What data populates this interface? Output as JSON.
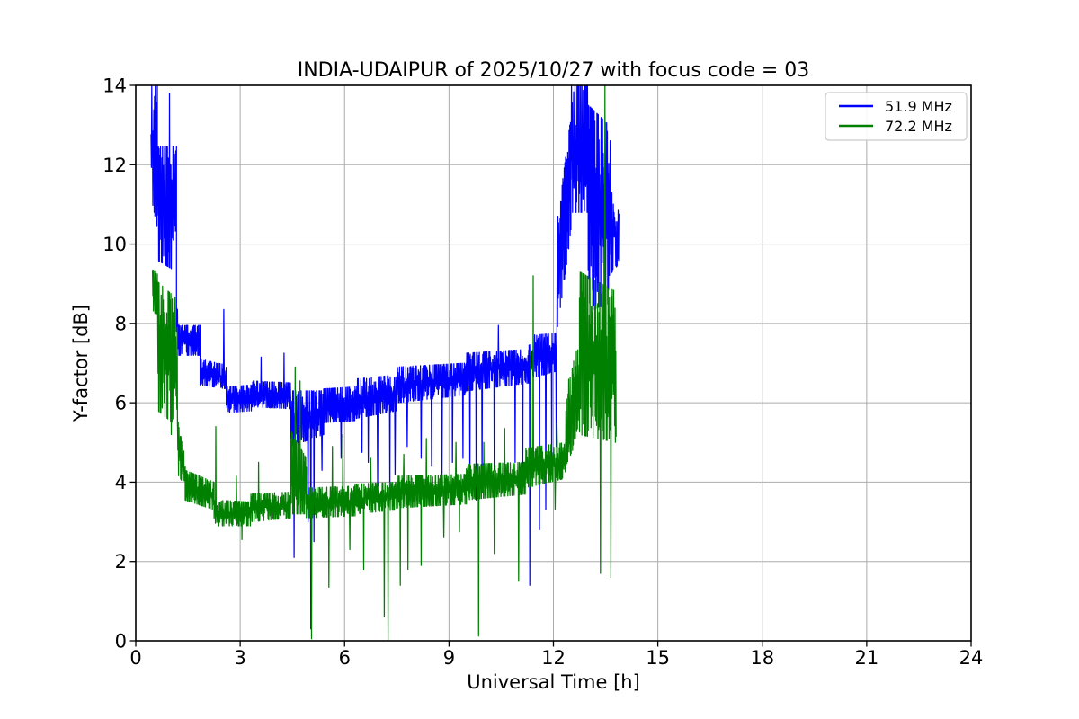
{
  "chart_data": {
    "type": "line",
    "title": "INDIA-UDAIPUR of 2025/10/27 with focus code = 03",
    "xlabel": "Universal Time [h]",
    "ylabel": "Y-factor [dB]",
    "xlim": [
      0,
      24
    ],
    "ylim": [
      0,
      14
    ],
    "xticks": [
      0,
      3,
      6,
      9,
      12,
      15,
      18,
      21,
      24
    ],
    "yticks": [
      0,
      2,
      4,
      6,
      8,
      10,
      12,
      14
    ],
    "grid": true,
    "grid_color": "#ababab",
    "legend_position": "upper right",
    "background": "#ffffff",
    "series": [
      {
        "name": "51.9 MHz",
        "color": "#0000ff",
        "data_time_range_h": [
          0.44,
          13.88
        ],
        "band_segments": [
          [
            0.44,
            0.62,
            11.2,
            14.0,
            10.4,
            14.0
          ],
          [
            0.62,
            1.17,
            9.6,
            12.45,
            9.3,
            12.45
          ],
          [
            1.17,
            1.23,
            7.5,
            9.4,
            7.3,
            8.2
          ],
          [
            1.23,
            1.85,
            7.2,
            7.95,
            7.2,
            7.95
          ],
          [
            1.85,
            2.6,
            6.45,
            7.1,
            6.35,
            6.95
          ],
          [
            2.6,
            3.35,
            5.75,
            6.4,
            5.8,
            6.45
          ],
          [
            3.35,
            4.45,
            5.9,
            6.55,
            5.85,
            6.5
          ],
          [
            4.45,
            5.4,
            4.9,
            6.3,
            5.2,
            6.3
          ],
          [
            5.4,
            6.3,
            5.5,
            6.35,
            5.55,
            6.4
          ],
          [
            6.3,
            7.5,
            5.6,
            6.6,
            5.8,
            6.7
          ],
          [
            7.5,
            9.5,
            6.0,
            6.9,
            6.2,
            7.0
          ],
          [
            9.5,
            11.3,
            6.3,
            7.25,
            6.5,
            7.35
          ],
          [
            11.3,
            12.1,
            6.6,
            7.7,
            6.8,
            7.75
          ],
          [
            12.1,
            12.5,
            7.8,
            10.5,
            10.2,
            13.2
          ],
          [
            12.5,
            13.0,
            10.8,
            14.0,
            10.8,
            14.0
          ],
          [
            13.0,
            13.6,
            8.3,
            13.5,
            8.5,
            13.0
          ],
          [
            13.6,
            13.88,
            9.2,
            11.5,
            9.5,
            10.8
          ]
        ],
        "spikes": [
          [
            0.97,
            13.8
          ],
          [
            2.53,
            8.35
          ],
          [
            3.6,
            7.15
          ],
          [
            4.26,
            7.25
          ],
          [
            4.55,
            2.1
          ],
          [
            4.72,
            4.4
          ],
          [
            4.95,
            3.0
          ],
          [
            5.03,
            0.3
          ],
          [
            5.12,
            2.5
          ],
          [
            5.35,
            4.3
          ],
          [
            5.9,
            4.6
          ],
          [
            6.5,
            4.75
          ],
          [
            6.68,
            4.5
          ],
          [
            6.95,
            3.9
          ],
          [
            7.3,
            3.6
          ],
          [
            7.45,
            4.2
          ],
          [
            7.8,
            4.9
          ],
          [
            8.2,
            4.6
          ],
          [
            8.5,
            4.4
          ],
          [
            8.8,
            4.2
          ],
          [
            9.1,
            4.5
          ],
          [
            9.4,
            4.6
          ],
          [
            9.6,
            3.9
          ],
          [
            9.78,
            3.55
          ],
          [
            9.95,
            4.1
          ],
          [
            10.3,
            4.3
          ],
          [
            10.42,
            7.95
          ],
          [
            10.9,
            4.5
          ],
          [
            11.12,
            4.3
          ],
          [
            11.32,
            1.4
          ],
          [
            11.6,
            2.8
          ],
          [
            11.78,
            3.3
          ],
          [
            11.95,
            4.3
          ],
          [
            12.08,
            4.9
          ],
          [
            13.63,
            12.6
          ]
        ]
      },
      {
        "name": "72.2 MHz",
        "color": "#008000",
        "data_time_range_h": [
          0.48,
          13.8
        ],
        "band_segments": [
          [
            0.48,
            0.63,
            8.3,
            9.35,
            8.2,
            9.3
          ],
          [
            0.63,
            1.2,
            5.8,
            9.05,
            5.4,
            8.6
          ],
          [
            1.2,
            1.42,
            4.2,
            5.6,
            3.9,
            4.6
          ],
          [
            1.42,
            2.25,
            3.55,
            4.3,
            3.3,
            4.0
          ],
          [
            2.25,
            3.3,
            2.9,
            3.55,
            2.9,
            3.5
          ],
          [
            3.3,
            4.45,
            3.0,
            3.7,
            3.1,
            3.75
          ],
          [
            4.45,
            4.9,
            3.2,
            5.3,
            3.2,
            4.6
          ],
          [
            4.9,
            6.3,
            3.1,
            3.85,
            3.15,
            3.9
          ],
          [
            6.3,
            7.5,
            3.2,
            3.95,
            3.3,
            4.0
          ],
          [
            7.5,
            9.5,
            3.35,
            4.15,
            3.45,
            4.2
          ],
          [
            9.5,
            11.2,
            3.55,
            4.45,
            3.7,
            4.5
          ],
          [
            11.2,
            12.35,
            3.85,
            4.85,
            4.1,
            5.0
          ],
          [
            12.35,
            12.75,
            4.4,
            6.3,
            5.2,
            7.6
          ],
          [
            12.75,
            13.8,
            5.2,
            9.3,
            5.0,
            8.8
          ]
        ],
        "spikes": [
          [
            1.02,
            5.2
          ],
          [
            2.3,
            5.4
          ],
          [
            2.89,
            4.15
          ],
          [
            3.05,
            2.55
          ],
          [
            3.53,
            4.5
          ],
          [
            4.58,
            6.9
          ],
          [
            4.72,
            6.55
          ],
          [
            5.05,
            0.05
          ],
          [
            5.55,
            1.35
          ],
          [
            5.65,
            4.9
          ],
          [
            5.95,
            5.2
          ],
          [
            6.15,
            2.3
          ],
          [
            6.55,
            1.8
          ],
          [
            6.75,
            4.6
          ],
          [
            7.14,
            0.6
          ],
          [
            7.25,
            0.03
          ],
          [
            7.6,
            1.4
          ],
          [
            7.7,
            4.7
          ],
          [
            7.82,
            1.8
          ],
          [
            8.2,
            1.9
          ],
          [
            8.35,
            5.1
          ],
          [
            8.85,
            2.6
          ],
          [
            9.2,
            5.0
          ],
          [
            9.3,
            2.75
          ],
          [
            9.85,
            0.12
          ],
          [
            10.0,
            5.0
          ],
          [
            10.3,
            2.2
          ],
          [
            10.6,
            5.35
          ],
          [
            11.0,
            1.5
          ],
          [
            11.35,
            7.3
          ],
          [
            11.42,
            9.2
          ],
          [
            12.05,
            3.3
          ],
          [
            12.1,
            5.5
          ],
          [
            13.35,
            1.7
          ],
          [
            13.48,
            14.0
          ],
          [
            13.65,
            1.6
          ]
        ]
      }
    ],
    "legend": [
      {
        "label": "51.9 MHz",
        "color": "#0000ff"
      },
      {
        "label": "72.2 MHz",
        "color": "#008000"
      }
    ]
  }
}
